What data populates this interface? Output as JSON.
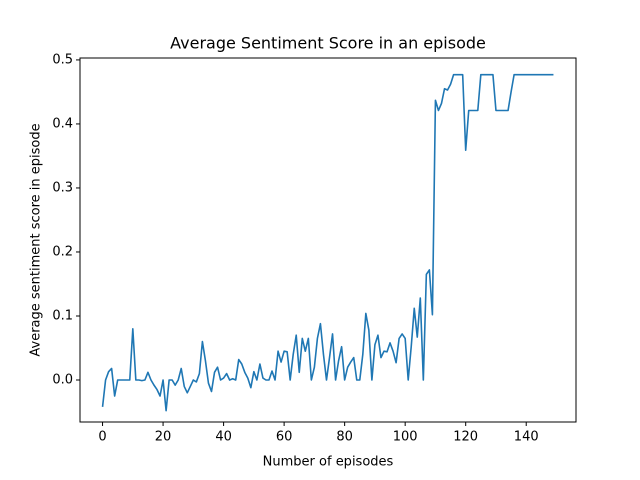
{
  "chart_data": {
    "type": "line",
    "title": "Average Sentiment Score in an episode",
    "xlabel": "Number of episodes",
    "ylabel": "Average sentiment score in episode",
    "color": "#1f77b4",
    "x": [
      0,
      1,
      2,
      3,
      4,
      5,
      6,
      7,
      8,
      9,
      10,
      11,
      12,
      13,
      14,
      15,
      16,
      17,
      18,
      19,
      20,
      21,
      22,
      23,
      24,
      25,
      26,
      27,
      28,
      29,
      30,
      31,
      32,
      33,
      34,
      35,
      36,
      37,
      38,
      39,
      40,
      41,
      42,
      43,
      44,
      45,
      46,
      47,
      48,
      49,
      50,
      51,
      52,
      53,
      54,
      55,
      56,
      57,
      58,
      59,
      60,
      61,
      62,
      63,
      64,
      65,
      66,
      67,
      68,
      69,
      70,
      71,
      72,
      73,
      74,
      75,
      76,
      77,
      78,
      79,
      80,
      81,
      82,
      83,
      84,
      85,
      86,
      87,
      88,
      89,
      90,
      91,
      92,
      93,
      94,
      95,
      96,
      97,
      98,
      99,
      100,
      101,
      102,
      103,
      104,
      105,
      106,
      107,
      108,
      109,
      110,
      111,
      112,
      113,
      114,
      115,
      116,
      117,
      118,
      119,
      120,
      121,
      122,
      123,
      124,
      125,
      126,
      127,
      128,
      129,
      130,
      131,
      132,
      133,
      134,
      135,
      136,
      137,
      138,
      139,
      140,
      141,
      142,
      143,
      144,
      145,
      146,
      147,
      148,
      149
    ],
    "values": [
      -0.042,
      0.0,
      0.013,
      0.018,
      -0.025,
      0.0,
      0.0,
      0.0,
      0.0,
      0.0,
      0.08,
      0.0,
      0.0,
      -0.001,
      0.0,
      0.012,
      0.0,
      -0.008,
      -0.015,
      -0.025,
      0.0,
      -0.048,
      0.0,
      0.0,
      -0.008,
      0.0,
      0.018,
      -0.01,
      -0.02,
      -0.01,
      0.0,
      -0.003,
      0.01,
      0.06,
      0.03,
      -0.005,
      -0.018,
      0.012,
      0.02,
      0.0,
      0.003,
      0.01,
      0.0,
      0.002,
      0.0,
      0.032,
      0.025,
      0.012,
      0.003,
      -0.012,
      0.013,
      0.0,
      0.025,
      0.003,
      0.0,
      0.0,
      0.014,
      0.0,
      0.045,
      0.028,
      0.045,
      0.044,
      0.0,
      0.04,
      0.07,
      0.012,
      0.065,
      0.045,
      0.065,
      0.0,
      0.02,
      0.065,
      0.088,
      0.04,
      0.0,
      0.035,
      0.072,
      0.0,
      0.03,
      0.052,
      0.0,
      0.02,
      0.028,
      0.035,
      0.0,
      0.0,
      0.04,
      0.104,
      0.078,
      0.0,
      0.055,
      0.07,
      0.035,
      0.045,
      0.044,
      0.058,
      0.045,
      0.027,
      0.065,
      0.072,
      0.065,
      0.0,
      0.052,
      0.112,
      0.067,
      0.128,
      0.0,
      0.165,
      0.172,
      0.102,
      0.437,
      0.421,
      0.432,
      0.455,
      0.453,
      0.462,
      0.477,
      0.477,
      0.477,
      0.477,
      0.359,
      0.421,
      0.421,
      0.421,
      0.421,
      0.477,
      0.477,
      0.477,
      0.477,
      0.477,
      0.421,
      0.421,
      0.421,
      0.421,
      0.421,
      0.45,
      0.477,
      0.477,
      0.477,
      0.477,
      0.477,
      0.477,
      0.477,
      0.477,
      0.477,
      0.477,
      0.477,
      0.477,
      0.477,
      0.477
    ],
    "xlim": [
      -7.45,
      156.45
    ],
    "ylim": [
      -0.0656,
      0.503
    ],
    "xticks": [
      0,
      20,
      40,
      60,
      80,
      100,
      120,
      140
    ],
    "yticks": [
      {
        "value": 0,
        "label": "0.0"
      },
      0.1,
      0.2,
      0.3,
      0.4,
      0.5
    ]
  }
}
